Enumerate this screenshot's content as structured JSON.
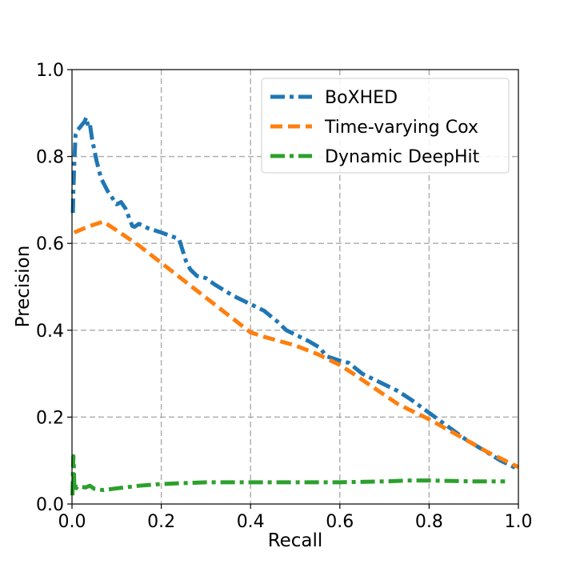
{
  "chart_data": {
    "type": "line",
    "title": "",
    "xlabel": "Recall",
    "ylabel": "Precision",
    "xlim": [
      0,
      1
    ],
    "ylim": [
      0,
      1
    ],
    "xticks": [
      "0.0",
      "0.2",
      "0.4",
      "0.6",
      "0.8",
      "1.0"
    ],
    "yticks": [
      "0.0",
      "0.2",
      "0.4",
      "0.6",
      "0.8",
      "1.0"
    ],
    "grid": true,
    "legend_position": "top-right",
    "series": [
      {
        "name": "BoXHED",
        "color": "#1f77b4",
        "dash": "dashdot",
        "x": [
          0.002,
          0.003,
          0.005,
          0.008,
          0.012,
          0.02,
          0.028,
          0.032,
          0.036,
          0.04,
          0.045,
          0.055,
          0.065,
          0.08,
          0.1,
          0.11,
          0.12,
          0.135,
          0.14,
          0.15,
          0.17,
          0.2,
          0.24,
          0.255,
          0.265,
          0.28,
          0.3,
          0.32,
          0.36,
          0.4,
          0.43,
          0.46,
          0.48,
          0.5,
          0.53,
          0.555,
          0.57,
          0.6,
          0.62,
          0.65,
          0.7,
          0.73,
          0.76,
          0.8,
          0.84,
          0.88,
          0.92,
          0.96,
          0.99,
          1.0
        ],
        "y": [
          0.67,
          0.72,
          0.78,
          0.85,
          0.86,
          0.87,
          0.88,
          0.89,
          0.87,
          0.875,
          0.84,
          0.79,
          0.75,
          0.72,
          0.69,
          0.695,
          0.68,
          0.64,
          0.638,
          0.645,
          0.635,
          0.625,
          0.61,
          0.56,
          0.54,
          0.525,
          0.52,
          0.505,
          0.48,
          0.46,
          0.445,
          0.42,
          0.4,
          0.39,
          0.375,
          0.36,
          0.34,
          0.33,
          0.325,
          0.3,
          0.275,
          0.26,
          0.24,
          0.21,
          0.18,
          0.15,
          0.125,
          0.1,
          0.085,
          0.082
        ]
      },
      {
        "name": "Time-varying Cox",
        "color": "#ff7f0e",
        "dash": "dashed",
        "x": [
          0.005,
          0.04,
          0.07,
          0.1,
          0.15,
          0.2,
          0.25,
          0.3,
          0.35,
          0.4,
          0.43,
          0.5,
          0.55,
          0.6,
          0.63,
          0.68,
          0.73,
          0.8,
          0.87,
          0.93,
          1.0
        ],
        "y": [
          0.625,
          0.64,
          0.65,
          0.63,
          0.595,
          0.555,
          0.515,
          0.475,
          0.435,
          0.395,
          0.385,
          0.365,
          0.345,
          0.32,
          0.3,
          0.265,
          0.23,
          0.195,
          0.155,
          0.12,
          0.085
        ]
      },
      {
        "name": "Dynamic DeepHit",
        "color": "#2ca02c",
        "dash": "dashdot",
        "x": [
          0.001,
          0.002,
          0.003,
          0.004,
          0.005,
          0.006,
          0.008,
          0.012,
          0.02,
          0.03,
          0.04,
          0.05,
          0.07,
          0.1,
          0.15,
          0.2,
          0.3,
          0.4,
          0.5,
          0.6,
          0.7,
          0.75,
          0.8,
          0.9,
          0.97
        ],
        "y": [
          0.02,
          0.06,
          0.11,
          0.09,
          0.05,
          0.03,
          0.035,
          0.04,
          0.04,
          0.038,
          0.042,
          0.035,
          0.032,
          0.036,
          0.042,
          0.046,
          0.05,
          0.05,
          0.05,
          0.05,
          0.052,
          0.054,
          0.054,
          0.052,
          0.052
        ]
      }
    ]
  }
}
